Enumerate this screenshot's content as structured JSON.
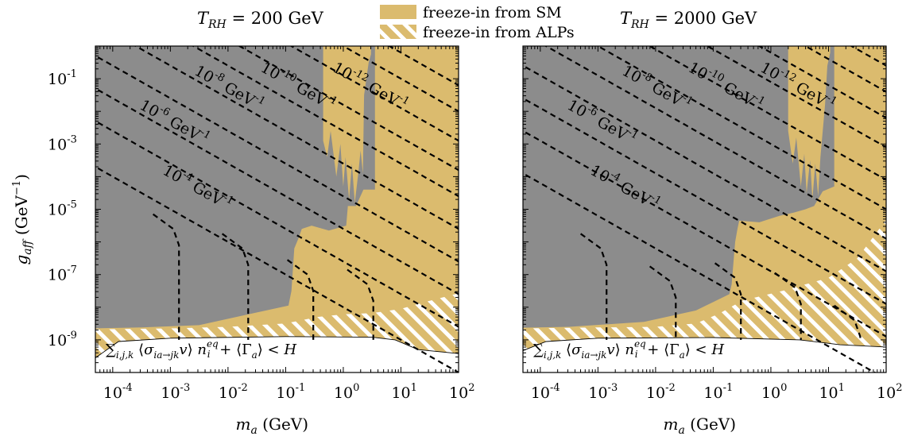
{
  "legend": {
    "items": [
      {
        "label": "freeze-in from SM",
        "style": "solid",
        "color": "#dbbb6e"
      },
      {
        "label": "freeze-in from ALPs",
        "style": "hatched",
        "color": "#dbbb6e"
      }
    ]
  },
  "colors": {
    "excluded": "#8c8c8c",
    "freeze_in": "#dbbb6e",
    "hatch": "#ffffff",
    "background": "#ffffff"
  },
  "chart_data": [
    {
      "type": "area",
      "title": "T_RH = 200 GeV",
      "xlabel": "m_a (GeV)",
      "ylabel": "g_aff (GeV^-1)",
      "xscale": "log",
      "yscale": "log",
      "xlim": [
        5e-05,
        100
      ],
      "ylim": [
        1e-10,
        1
      ],
      "xticks": [
        {
          "exp": "-4"
        },
        {
          "exp": "-3"
        },
        {
          "exp": "-2"
        },
        {
          "exp": "-1"
        },
        {
          "exp": "0"
        },
        {
          "exp": "1"
        },
        {
          "exp": "2"
        }
      ],
      "yticks": [
        {
          "exp": "-1"
        },
        {
          "exp": "-3"
        },
        {
          "exp": "-5"
        },
        {
          "exp": "-7"
        },
        {
          "exp": "-9"
        }
      ],
      "contour_labels": [
        {
          "mantissa": "10",
          "exp": "-4",
          "unit": "GeV",
          "unit_exp": "-1"
        },
        {
          "mantissa": "10",
          "exp": "-6",
          "unit": "GeV",
          "unit_exp": "-1"
        },
        {
          "mantissa": "10",
          "exp": "-8",
          "unit": "GeV",
          "unit_exp": "-1"
        },
        {
          "mantissa": "10",
          "exp": "-10",
          "unit": "GeV",
          "unit_exp": "-1"
        },
        {
          "mantissa": "10",
          "exp": "-12",
          "unit": "GeV",
          "unit_exp": "-1"
        }
      ],
      "region_label": "∑i,j,k ⟨σia→jk v⟩ ni^eq + ⟨Γa⟩ < H"
    },
    {
      "type": "area",
      "title": "T_RH = 2000 GeV",
      "xlabel": "m_a (GeV)",
      "ylabel": "",
      "xscale": "log",
      "yscale": "log",
      "xlim": [
        5e-05,
        100
      ],
      "ylim": [
        1e-10,
        1
      ],
      "xticks": [
        {
          "exp": "-4"
        },
        {
          "exp": "-3"
        },
        {
          "exp": "-2"
        },
        {
          "exp": "-1"
        },
        {
          "exp": "0"
        },
        {
          "exp": "1"
        },
        {
          "exp": "2"
        }
      ],
      "contour_labels": [
        {
          "mantissa": "10",
          "exp": "-4",
          "unit": "GeV",
          "unit_exp": "-1"
        },
        {
          "mantissa": "10",
          "exp": "-6",
          "unit": "GeV",
          "unit_exp": "-1"
        },
        {
          "mantissa": "10",
          "exp": "-8",
          "unit": "GeV",
          "unit_exp": "-1"
        },
        {
          "mantissa": "10",
          "exp": "-10",
          "unit": "GeV",
          "unit_exp": "-1"
        },
        {
          "mantissa": "10",
          "exp": "-12",
          "unit": "GeV",
          "unit_exp": "-1"
        }
      ],
      "region_label": "∑i,j,k ⟨σia→jk v⟩ ni^eq + ⟨Γa⟩ < H"
    }
  ]
}
